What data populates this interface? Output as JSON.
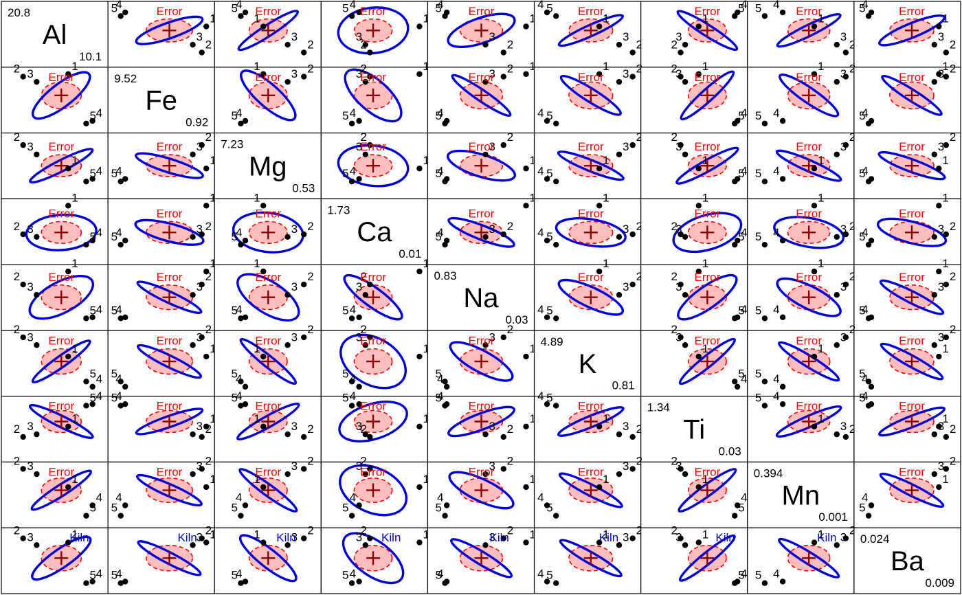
{
  "chart_data": {
    "type": "scatter",
    "title": "",
    "variables": [
      "Al",
      "Fe",
      "Mg",
      "Ca",
      "Na",
      "K",
      "Ti",
      "Mn",
      "Ba"
    ],
    "ranges": {
      "Al": {
        "max": "20.8",
        "min": "10.1"
      },
      "Fe": {
        "max": "9.52",
        "min": "0.92"
      },
      "Mg": {
        "max": "7.23",
        "min": "0.53"
      },
      "Ca": {
        "max": "1.73",
        "min": "0.01"
      },
      "Na": {
        "max": "0.83",
        "min": "0.03"
      },
      "K": {
        "max": "4.89",
        "min": "0.81"
      },
      "Ti": {
        "max": "1.34",
        "min": "0.03"
      },
      "Mn": {
        "max": "0.394",
        "min": "0.001"
      },
      "Ba": {
        "max": "0.024",
        "min": "0.009"
      }
    },
    "observations": [
      {
        "label": "1",
        "values": [
          0.65,
          1.0,
          0.45,
          1.0,
          1.0,
          0.63,
          0.55,
          0.65,
          0.85
        ]
      },
      {
        "label": "2",
        "values": [
          0.15,
          0.95,
          0.9,
          0.45,
          0.75,
          1.0,
          0.35,
          1.0,
          0.93
        ]
      },
      {
        "label": "3",
        "values": [
          0.3,
          0.85,
          0.72,
          0.4,
          0.55,
          0.85,
          0.4,
          0.9,
          0.8
        ]
      },
      {
        "label": "4",
        "values": [
          0.92,
          0.1,
          0.25,
          0.33,
          0.12,
          0.05,
          0.98,
          0.3,
          0.1
        ]
      },
      {
        "label": "5",
        "values": [
          0.85,
          0.05,
          0.2,
          0.25,
          0.1,
          0.15,
          0.95,
          0.1,
          0.07
        ]
      }
    ],
    "error_label": "Error",
    "hypothesis_label": "Kiln",
    "error_color": "#ff0000",
    "error_fill": "#ffb3b3",
    "hypothesis_color": "#0000dd",
    "point_color": "#000000"
  }
}
